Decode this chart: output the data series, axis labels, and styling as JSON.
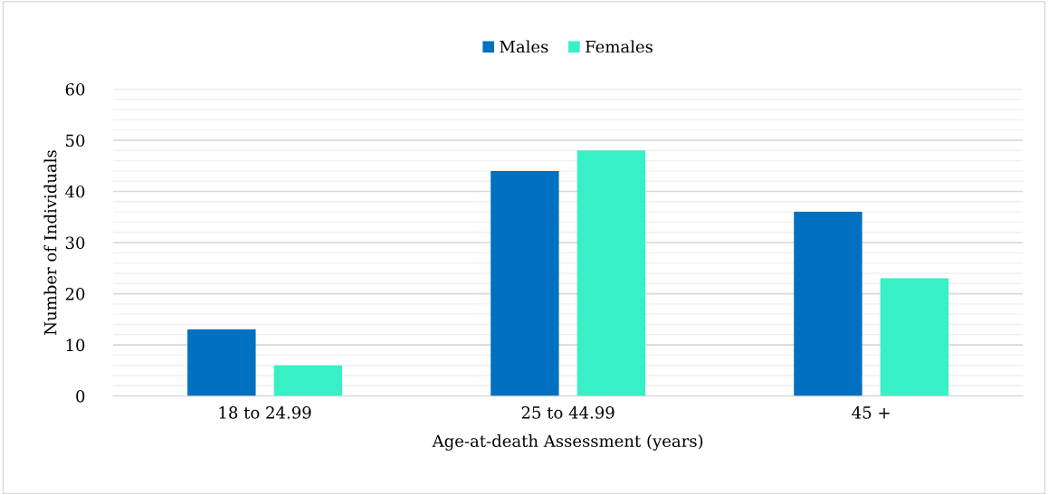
{
  "chart_data": {
    "type": "bar",
    "xlabel": "Age-at-death Assessment (years)",
    "ylabel": "Number of Individuals",
    "categories": [
      "18 to 24.99",
      "25 to 44.99",
      "45 +"
    ],
    "series": [
      {
        "name": "Males",
        "color": "#0070c0",
        "values": [
          13,
          44,
          36
        ]
      },
      {
        "name": "Females",
        "color": "#37f0c6",
        "values": [
          6,
          48,
          23
        ]
      }
    ],
    "ylim": [
      0,
      60
    ],
    "yticks": [
      0,
      {
        "value": 2,
        "label": null
      },
      {
        "value": 4,
        "label": null
      },
      {
        "value": 6,
        "label": null
      },
      {
        "value": 8,
        "label": null
      },
      10,
      {
        "value": 12,
        "label": null
      },
      {
        "value": 14,
        "label": null
      },
      {
        "value": 16,
        "label": null
      },
      {
        "value": 18,
        "label": null
      },
      20,
      {
        "value": 22,
        "label": null
      },
      {
        "value": 24,
        "label": null
      },
      {
        "value": 26,
        "label": null
      },
      {
        "value": 28,
        "label": null
      },
      30,
      {
        "value": 32,
        "label": null
      },
      {
        "value": 34,
        "label": null
      },
      {
        "value": 36,
        "label": null
      },
      {
        "value": 38,
        "label": null
      },
      40,
      {
        "value": 42,
        "label": null
      },
      {
        "value": 44,
        "label": null
      },
      {
        "value": 46,
        "label": null
      },
      {
        "value": 48,
        "label": null
      },
      50,
      {
        "value": 52,
        "label": null
      },
      {
        "value": 54,
        "label": null
      },
      {
        "value": 56,
        "label": null
      },
      {
        "value": 58,
        "label": null
      },
      60
    ],
    "grid": "y",
    "legend": "top"
  }
}
